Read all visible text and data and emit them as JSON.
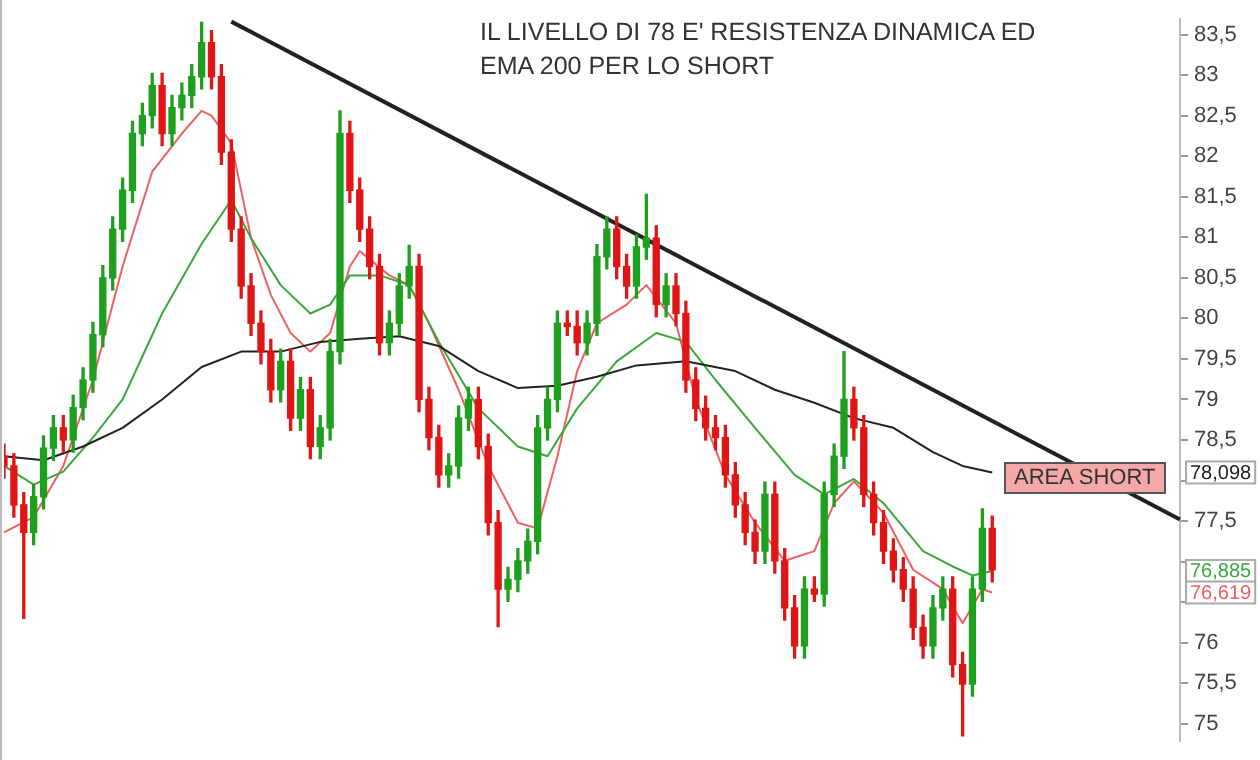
{
  "chart_data": {
    "type": "candlestick",
    "title": "IL LIVELLO DI 78 E' RESISTENZA DINAMICA ED EMA 200 PER LO SHORT",
    "categories": [
      null,
      null,
      null,
      null,
      null,
      null,
      null,
      null,
      null,
      null,
      null,
      null,
      null,
      null,
      null,
      null,
      null,
      null,
      null,
      null,
      null,
      null,
      null,
      null,
      null,
      null,
      null,
      null,
      null,
      null,
      null,
      null,
      null,
      null,
      null,
      null,
      null,
      null,
      null,
      null,
      null,
      null,
      null,
      null,
      null,
      null,
      null,
      null,
      null,
      null,
      null,
      null,
      null,
      null,
      null,
      null,
      null,
      null,
      null,
      null,
      null,
      null,
      null,
      null,
      null,
      null,
      null,
      null,
      null,
      null,
      null,
      null,
      null,
      null,
      null,
      null,
      null,
      null,
      null,
      null,
      null,
      null,
      null,
      null,
      null,
      null,
      null,
      null,
      null,
      null,
      null,
      null,
      null,
      null,
      null,
      null,
      null,
      null,
      null,
      null,
      null,
      null,
      null,
      null,
      null,
      null,
      null,
      null,
      null,
      null,
      null,
      null,
      null,
      null,
      null,
      null,
      null,
      null,
      null,
      null
    ],
    "ohlc": [
      [
        78.3,
        78.45,
        78.03,
        78.18
      ],
      [
        78.18,
        78.33,
        77.55,
        77.7
      ],
      [
        77.7,
        77.85,
        76.3,
        77.36
      ],
      [
        77.36,
        77.95,
        77.21,
        77.8
      ],
      [
        77.8,
        78.55,
        77.65,
        78.4
      ],
      [
        78.4,
        78.8,
        78.25,
        78.65
      ],
      [
        78.65,
        78.8,
        78.35,
        78.5
      ],
      [
        78.5,
        79.05,
        78.35,
        78.9
      ],
      [
        78.9,
        79.39,
        78.75,
        79.24
      ],
      [
        79.24,
        79.95,
        79.09,
        79.8
      ],
      [
        79.8,
        80.65,
        79.65,
        80.5
      ],
      [
        80.5,
        81.25,
        80.35,
        81.1
      ],
      [
        81.1,
        81.73,
        80.95,
        81.58
      ],
      [
        81.58,
        82.43,
        81.43,
        82.28
      ],
      [
        82.28,
        82.65,
        82.13,
        82.5
      ],
      [
        82.5,
        83.02,
        82.35,
        82.87
      ],
      [
        82.87,
        83.02,
        82.13,
        82.28
      ],
      [
        82.28,
        82.75,
        82.13,
        82.6
      ],
      [
        82.6,
        82.9,
        82.45,
        82.75
      ],
      [
        82.75,
        83.13,
        82.6,
        82.98
      ],
      [
        82.98,
        83.65,
        82.83,
        83.4
      ],
      [
        83.4,
        83.55,
        82.83,
        82.98
      ],
      [
        82.98,
        83.13,
        81.9,
        82.05
      ],
      [
        82.05,
        82.2,
        80.95,
        81.1
      ],
      [
        81.1,
        81.25,
        80.25,
        80.4
      ],
      [
        80.4,
        80.55,
        79.79,
        79.94
      ],
      [
        79.94,
        80.09,
        79.44,
        79.59
      ],
      [
        79.59,
        79.74,
        78.97,
        79.12
      ],
      [
        79.12,
        79.62,
        78.97,
        79.47
      ],
      [
        79.47,
        79.62,
        78.62,
        78.77
      ],
      [
        78.77,
        79.27,
        78.62,
        79.12
      ],
      [
        79.12,
        79.27,
        78.27,
        78.42
      ],
      [
        78.42,
        78.8,
        78.27,
        78.65
      ],
      [
        78.65,
        79.74,
        78.5,
        79.59
      ],
      [
        79.59,
        82.56,
        79.44,
        82.28
      ],
      [
        82.28,
        82.43,
        81.43,
        81.58
      ],
      [
        81.58,
        81.73,
        80.95,
        81.1
      ],
      [
        81.1,
        81.25,
        80.49,
        80.64
      ],
      [
        80.64,
        80.79,
        79.55,
        79.7
      ],
      [
        79.7,
        80.09,
        79.55,
        79.94
      ],
      [
        79.94,
        80.55,
        79.79,
        80.4
      ],
      [
        80.4,
        80.9,
        80.25,
        80.64
      ],
      [
        80.64,
        80.79,
        78.85,
        79.0
      ],
      [
        79.0,
        79.15,
        78.38,
        78.53
      ],
      [
        78.53,
        78.68,
        77.92,
        78.07
      ],
      [
        78.07,
        78.33,
        77.92,
        78.18
      ],
      [
        78.18,
        78.92,
        78.03,
        78.77
      ],
      [
        78.77,
        79.15,
        78.62,
        79.0
      ],
      [
        79.0,
        79.15,
        78.27,
        78.42
      ],
      [
        78.42,
        78.57,
        77.33,
        77.48
      ],
      [
        77.48,
        77.63,
        76.2,
        76.66
      ],
      [
        76.66,
        76.93,
        76.51,
        76.78
      ],
      [
        76.78,
        77.16,
        76.63,
        77.01
      ],
      [
        77.01,
        77.4,
        76.86,
        77.25
      ],
      [
        77.25,
        78.8,
        77.1,
        78.65
      ],
      [
        78.65,
        79.15,
        78.5,
        79.0
      ],
      [
        79.0,
        80.09,
        78.85,
        79.94
      ],
      [
        79.94,
        80.09,
        79.79,
        79.9
      ],
      [
        79.9,
        80.09,
        79.55,
        79.7
      ],
      [
        79.7,
        80.09,
        79.55,
        79.94
      ],
      [
        79.94,
        80.91,
        79.79,
        80.76
      ],
      [
        80.76,
        81.25,
        80.61,
        81.1
      ],
      [
        81.1,
        81.25,
        80.49,
        80.64
      ],
      [
        80.64,
        80.79,
        80.25,
        80.4
      ],
      [
        80.4,
        81.03,
        80.25,
        80.88
      ],
      [
        80.88,
        81.53,
        80.73,
        80.99
      ],
      [
        80.99,
        81.14,
        80.02,
        80.17
      ],
      [
        80.17,
        80.55,
        80.02,
        80.4
      ],
      [
        80.4,
        80.55,
        79.91,
        80.06
      ],
      [
        80.06,
        80.21,
        79.09,
        79.24
      ],
      [
        79.24,
        79.39,
        78.74,
        78.89
      ],
      [
        78.89,
        79.04,
        78.5,
        78.65
      ],
      [
        78.65,
        78.8,
        78.38,
        78.53
      ],
      [
        78.53,
        78.68,
        77.92,
        78.07
      ],
      [
        78.07,
        78.22,
        77.55,
        77.7
      ],
      [
        77.7,
        77.85,
        77.21,
        77.36
      ],
      [
        77.36,
        77.51,
        76.98,
        77.13
      ],
      [
        77.13,
        77.98,
        76.98,
        77.83
      ],
      [
        77.83,
        77.98,
        76.86,
        77.01
      ],
      [
        77.01,
        77.16,
        76.28,
        76.43
      ],
      [
        76.43,
        76.58,
        75.81,
        75.96
      ],
      [
        75.96,
        76.81,
        75.81,
        76.66
      ],
      [
        76.66,
        76.81,
        76.51,
        76.6
      ],
      [
        76.6,
        77.98,
        76.45,
        77.83
      ],
      [
        77.83,
        78.45,
        77.68,
        78.3
      ],
      [
        78.3,
        79.59,
        78.15,
        79.0
      ],
      [
        79.0,
        79.15,
        78.5,
        78.65
      ],
      [
        78.65,
        78.8,
        77.68,
        77.83
      ],
      [
        77.83,
        77.98,
        77.33,
        77.48
      ],
      [
        77.48,
        77.63,
        76.98,
        77.13
      ],
      [
        77.13,
        77.28,
        76.75,
        76.9
      ],
      [
        76.9,
        77.05,
        76.51,
        76.66
      ],
      [
        76.66,
        76.81,
        76.04,
        76.19
      ],
      [
        76.19,
        76.34,
        75.81,
        75.96
      ],
      [
        75.96,
        76.58,
        75.81,
        76.43
      ],
      [
        76.43,
        76.81,
        76.28,
        76.66
      ],
      [
        76.66,
        76.81,
        75.58,
        75.73
      ],
      [
        75.73,
        75.88,
        74.85,
        75.49
      ],
      [
        75.49,
        76.81,
        75.34,
        76.66
      ],
      [
        76.66,
        77.65,
        76.51,
        77.41
      ],
      [
        77.41,
        77.56,
        76.75,
        76.9
      ],
      null,
      null,
      null,
      null,
      null,
      null,
      null,
      null,
      null,
      null,
      null,
      null,
      null,
      null,
      null,
      null,
      null,
      null,
      null
    ],
    "colors": [
      "#e01515",
      "#e01515",
      "#e01515",
      "#1ea01e",
      "#1ea01e",
      "#1ea01e",
      "#e01515",
      "#1ea01e",
      "#1ea01e",
      "#1ea01e",
      "#1ea01e",
      "#1ea01e",
      "#1ea01e",
      "#1ea01e",
      "#1ea01e",
      "#1ea01e",
      "#e01515",
      "#1ea01e",
      "#1ea01e",
      "#1ea01e",
      "#1ea01e",
      "#e01515",
      "#e01515",
      "#e01515",
      "#e01515",
      "#e01515",
      "#e01515",
      "#e01515",
      "#1ea01e",
      "#e01515",
      "#1ea01e",
      "#e01515",
      "#1ea01e",
      "#1ea01e",
      "#1ea01e",
      "#e01515",
      "#e01515",
      "#e01515",
      "#e01515",
      "#1ea01e",
      "#1ea01e",
      "#1ea01e",
      "#e01515",
      "#e01515",
      "#e01515",
      "#1ea01e",
      "#1ea01e",
      "#1ea01e",
      "#e01515",
      "#e01515",
      "#e01515",
      "#1ea01e",
      "#1ea01e",
      "#1ea01e",
      "#1ea01e",
      "#1ea01e",
      "#1ea01e",
      "#e01515",
      "#e01515",
      "#1ea01e",
      "#1ea01e",
      "#1ea01e",
      "#e01515",
      "#e01515",
      "#1ea01e",
      "#1ea01e",
      "#e01515",
      "#1ea01e",
      "#e01515",
      "#e01515",
      "#e01515",
      "#e01515",
      "#e01515",
      "#e01515",
      "#e01515",
      "#e01515",
      "#e01515",
      "#1ea01e",
      "#e01515",
      "#e01515",
      "#e01515",
      "#1ea01e",
      "#e01515",
      "#1ea01e",
      "#1ea01e",
      "#1ea01e",
      "#e01515",
      "#e01515",
      "#e01515",
      "#e01515",
      "#e01515",
      "#e01515",
      "#e01515",
      "#e01515",
      "#1ea01e",
      "#1ea01e",
      "#e01515",
      "#e01515",
      "#1ea01e",
      "#1ea01e",
      "#e01515",
      null,
      null,
      null,
      null,
      null,
      null,
      null,
      null,
      null,
      null,
      null,
      null,
      null,
      null,
      null,
      null,
      null,
      null,
      null
    ],
    "series": [
      {
        "type": "line",
        "color": "#222222",
        "values": [
          78.3,
          null,
          null,
          null,
          78.25,
          null,
          null,
          null,
          78.42,
          null,
          null,
          null,
          78.65,
          null,
          null,
          null,
          79.0,
          null,
          null,
          null,
          79.4,
          null,
          null,
          null,
          79.59,
          null,
          null,
          null,
          79.59,
          null,
          null,
          null,
          79.71,
          null,
          null,
          null,
          79.75,
          null,
          null,
          null,
          79.78,
          null,
          null,
          null,
          79.66,
          null,
          null,
          null,
          79.35,
          null,
          null,
          null,
          79.14,
          null,
          null,
          null,
          79.17,
          null,
          null,
          null,
          79.28,
          null,
          null,
          null,
          79.42,
          null,
          null,
          null,
          null,
          79.47,
          null,
          null,
          null,
          null,
          79.35,
          null,
          null,
          null,
          79.12,
          null,
          null,
          null,
          78.96,
          null,
          null,
          null,
          78.77,
          null,
          null,
          null,
          78.65,
          null,
          null,
          null,
          78.35,
          null,
          null,
          78.18,
          null,
          null,
          78.098,
          null,
          null,
          null,
          null,
          null,
          null,
          null,
          null,
          null,
          null,
          null,
          null,
          null,
          null,
          null,
          null,
          null,
          null,
          null
        ]
      },
      {
        "type": "line",
        "color": "#3aa83a",
        "values": [
          78.18,
          null,
          null,
          77.95,
          null,
          null,
          78.11,
          null,
          null,
          78.53,
          null,
          null,
          79.0,
          null,
          null,
          null,
          80.06,
          null,
          null,
          null,
          80.92,
          null,
          null,
          81.46,
          null,
          80.99,
          null,
          null,
          80.41,
          null,
          null,
          80.06,
          null,
          80.17,
          null,
          80.53,
          null,
          null,
          80.53,
          null,
          null,
          80.41,
          null,
          null,
          79.71,
          null,
          null,
          null,
          78.89,
          null,
          null,
          null,
          78.42,
          null,
          null,
          78.3,
          null,
          null,
          78.89,
          null,
          null,
          null,
          79.47,
          null,
          null,
          null,
          79.82,
          null,
          null,
          79.71,
          null,
          null,
          79.24,
          null,
          null,
          null,
          78.65,
          null,
          null,
          null,
          78.07,
          null,
          null,
          77.83,
          null,
          null,
          78.02,
          null,
          null,
          77.72,
          null,
          null,
          null,
          77.13,
          null,
          null,
          76.94,
          null,
          76.83,
          null,
          76.885,
          null,
          null,
          null,
          null,
          null,
          null,
          null,
          null,
          null,
          null,
          null,
          null,
          null,
          null,
          null,
          null,
          null,
          null,
          null
        ]
      },
      {
        "type": "line",
        "color": "#f06060",
        "values": [
          77.36,
          null,
          null,
          77.55,
          null,
          null,
          78.18,
          null,
          null,
          79.24,
          null,
          null,
          80.64,
          null,
          null,
          81.81,
          null,
          null,
          82.28,
          null,
          82.56,
          82.5,
          null,
          82.16,
          null,
          80.99,
          null,
          80.29,
          null,
          79.82,
          null,
          79.59,
          null,
          79.82,
          null,
          80.64,
          80.83,
          null,
          null,
          80.53,
          null,
          80.41,
          null,
          79.94,
          null,
          null,
          79.12,
          null,
          null,
          78.18,
          null,
          null,
          77.48,
          null,
          77.41,
          null,
          78.3,
          null,
          79.35,
          null,
          79.94,
          null,
          null,
          80.17,
          null,
          80.41,
          null,
          null,
          79.94,
          null,
          79.0,
          null,
          null,
          78.07,
          null,
          null,
          77.48,
          null,
          null,
          77.01,
          null,
          null,
          77.13,
          null,
          77.72,
          null,
          77.99,
          null,
          null,
          77.6,
          null,
          null,
          76.9,
          null,
          null,
          76.66,
          null,
          76.24,
          null,
          76.66,
          76.619,
          null,
          null,
          null,
          null,
          null,
          null,
          null,
          null,
          null,
          null,
          null,
          null,
          null,
          null,
          null,
          null,
          null,
          null,
          null
        ]
      },
      {
        "type": "line",
        "color": "#222222",
        "values": [
          null,
          null,
          null,
          null,
          null,
          null,
          null,
          null,
          null,
          null,
          null,
          null,
          null,
          null,
          null,
          null,
          null,
          null,
          null,
          null,
          null,
          null,
          null,
          83.66,
          null,
          null,
          null,
          null,
          null,
          null,
          null,
          null,
          null,
          null,
          null,
          null,
          null,
          null,
          null,
          null,
          null,
          null,
          null,
          null,
          null,
          null,
          null,
          null,
          null,
          null,
          null,
          null,
          null,
          null,
          null,
          null,
          null,
          null,
          null,
          null,
          null,
          null,
          null,
          null,
          null,
          null,
          null,
          null,
          null,
          null,
          null,
          null,
          null,
          null,
          null,
          null,
          null,
          null,
          null,
          null,
          null,
          null,
          null,
          null,
          null,
          null,
          null,
          null,
          null,
          null,
          null,
          null,
          null,
          null,
          null,
          null,
          null,
          null,
          null,
          null,
          null,
          null,
          null,
          null,
          null,
          null,
          null,
          null,
          null,
          null,
          null,
          null,
          null,
          null,
          null,
          null,
          null,
          null,
          null,
          77.52
        ]
      }
    ],
    "annotations": [
      "AREA SHORT",
      {
        "text": "78,098",
        "y": 78.098
      },
      {
        "text": "76,885",
        "y": 76.885
      },
      {
        "text": "76,619",
        "y": 76.619
      }
    ],
    "ylim": [
      74.79,
      83.69
    ],
    "yticks": [
      75,
      {
        "value": 75.5,
        "label": "75,5"
      },
      76,
      {
        "value": 76.5,
        "label": null
      },
      {
        "value": 77,
        "label": null
      },
      {
        "value": 77.5,
        "label": "77,5"
      },
      {
        "value": 78,
        "label": null
      },
      {
        "value": 78.5,
        "label": "78,5"
      },
      79,
      {
        "value": 79.5,
        "label": "79,5"
      },
      80,
      {
        "value": 80.5,
        "label": "80,5"
      },
      81,
      {
        "value": 81.5,
        "label": "81,5"
      },
      82,
      {
        "value": 82.5,
        "label": "82,5"
      },
      83,
      {
        "value": 83.5,
        "label": "83,5"
      }
    ],
    "tick_labels": "y",
    "grid": false,
    "legend": false,
    "marker": "none"
  }
}
